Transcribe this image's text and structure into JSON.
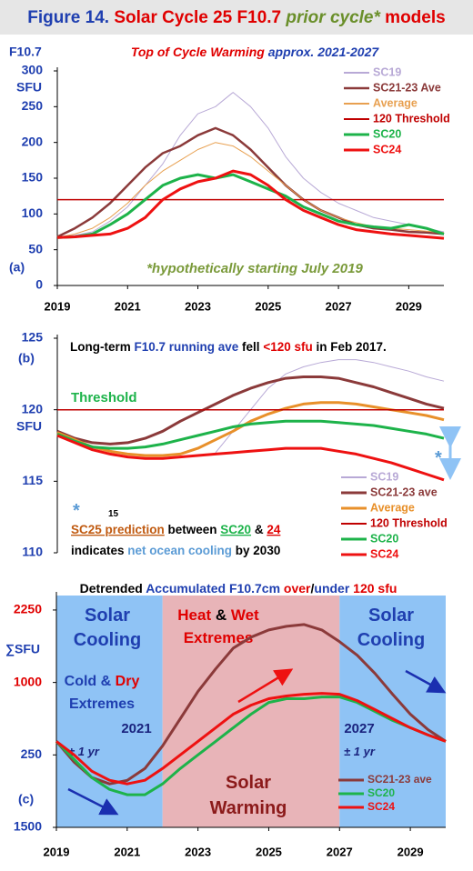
{
  "title": [
    {
      "text": "Figure 14. ",
      "color": "#1f3fb0"
    },
    {
      "text": "Solar Cycle 25 F10.7 ",
      "color": "#e00000"
    },
    {
      "text": "prior cycle*",
      "color": "#6a8f2a",
      "italic": true
    },
    {
      "text": " models",
      "color": "#e00000"
    }
  ],
  "chart_data": [
    {
      "type": "line",
      "subtitle": [
        {
          "text": "Top of Cycle Warming ",
          "color": "#e00000",
          "italic": true
        },
        {
          "text": "approx. 2021-2027",
          "color": "#1f3fb0",
          "italic": true
        }
      ],
      "ylabel": [
        "F10.7",
        "SFU"
      ],
      "panel_label": "(a)",
      "annotations": [
        [
          {
            "text": "*hypothetically  starting July 2019",
            "color": "#7a9a3a",
            "italic": true
          }
        ]
      ],
      "x": [
        2019,
        2019.5,
        2020,
        2020.5,
        2021,
        2021.5,
        2022,
        2022.5,
        2023,
        2023.5,
        2024,
        2024.5,
        2025,
        2025.5,
        2026,
        2026.5,
        2027,
        2027.5,
        2028,
        2028.5,
        2029,
        2029.5,
        2030
      ],
      "xlim": [
        2019,
        2030
      ],
      "xticks": [
        2019,
        2021,
        2023,
        2025,
        2027,
        2029
      ],
      "ylim": [
        0,
        300
      ],
      "yticks": [
        0,
        50,
        100,
        150,
        200,
        250,
        300
      ],
      "legend": "upper right",
      "series": [
        {
          "name": "SC19",
          "color": "#b8a9d6",
          "width": 1,
          "values": [
            68,
            70,
            75,
            90,
            110,
            140,
            170,
            210,
            240,
            250,
            270,
            250,
            220,
            180,
            150,
            130,
            115,
            105,
            95,
            90,
            85,
            80,
            75
          ]
        },
        {
          "name": "SC21-23 Ave",
          "color": "#8b3a3a",
          "width": 2.5,
          "values": [
            68,
            80,
            95,
            115,
            140,
            165,
            185,
            195,
            210,
            220,
            210,
            190,
            165,
            140,
            120,
            105,
            95,
            85,
            80,
            78,
            75,
            74,
            72
          ]
        },
        {
          "name": "Average",
          "color": "#e8a050",
          "width": 1,
          "values": [
            67,
            72,
            80,
            95,
            115,
            140,
            160,
            175,
            190,
            200,
            195,
            180,
            160,
            140,
            120,
            105,
            95,
            88,
            82,
            80,
            78,
            76,
            74
          ]
        },
        {
          "name": "120 Threshold",
          "color": "#c00000",
          "width": 1.5,
          "values": [
            120,
            120,
            120,
            120,
            120,
            120,
            120,
            120,
            120,
            120,
            120,
            120,
            120,
            120,
            120,
            120,
            120,
            120,
            120,
            120,
            120,
            120,
            120
          ]
        },
        {
          "name": "SC20",
          "color": "#1db34a",
          "width": 3,
          "values": [
            67,
            68,
            72,
            85,
            100,
            120,
            140,
            150,
            155,
            150,
            155,
            145,
            135,
            125,
            110,
            100,
            90,
            85,
            82,
            80,
            85,
            80,
            72
          ]
        },
        {
          "name": "SC24",
          "color": "#ee1111",
          "width": 3,
          "values": [
            67,
            68,
            70,
            72,
            80,
            95,
            120,
            135,
            145,
            150,
            160,
            155,
            140,
            120,
            105,
            95,
            85,
            78,
            75,
            72,
            70,
            68,
            66
          ]
        }
      ]
    },
    {
      "type": "line",
      "ylabel": [
        "SFU"
      ],
      "panel_label": "(b)",
      "annotations": [
        [
          {
            "text": "Long-term ",
            "color": "#000000"
          },
          {
            "text": "F10.7 running ave",
            "color": "#1f3fb0"
          },
          {
            "text": " fell ",
            "color": "#000000"
          },
          {
            "text": "<120 sfu",
            "color": "#e00000"
          },
          {
            "text": " in Feb 2017.",
            "color": "#000000"
          }
        ],
        [
          {
            "text": "Threshold",
            "color": "#1db34a"
          }
        ],
        [
          {
            "text": "*",
            "color": "#5b9bd5"
          }
        ],
        [
          {
            "text": "15",
            "color": "#000000"
          }
        ],
        [
          {
            "text": "SC25 prediction",
            "color": "#c05a10",
            "underline": true
          },
          {
            "text": " between ",
            "color": "#000000"
          },
          {
            "text": "SC20",
            "color": "#1db34a",
            "underline": true
          },
          {
            "text": " & ",
            "color": "#000000"
          },
          {
            "text": "24",
            "color": "#e00000",
            "underline": true
          }
        ],
        [
          {
            "text": "indicates ",
            "color": "#000000"
          },
          {
            "text": "net ocean cooling",
            "color": "#5b9bd5"
          },
          {
            "text": " by 2030",
            "color": "#000000"
          }
        ],
        [
          {
            "text": "*",
            "color": "#5b9bd5"
          }
        ]
      ],
      "x": [
        2019,
        2019.5,
        2020,
        2020.5,
        2021,
        2021.5,
        2022,
        2022.5,
        2023,
        2023.5,
        2024,
        2024.5,
        2025,
        2025.5,
        2026,
        2026.5,
        2027,
        2027.5,
        2028,
        2028.5,
        2029,
        2029.5,
        2030
      ],
      "xlim": [
        2019,
        2030
      ],
      "ylim": [
        110,
        125
      ],
      "yticks": [
        110,
        115,
        120,
        125
      ],
      "legend": "lower right",
      "series": [
        {
          "name": "SC19",
          "color": "#b8a9d6",
          "width": 1,
          "values": [
            null,
            null,
            null,
            null,
            null,
            null,
            null,
            null,
            null,
            117,
            118.5,
            120,
            121.5,
            122.5,
            123,
            123.3,
            123.5,
            123.5,
            123.3,
            123,
            122.7,
            122.3,
            122
          ]
        },
        {
          "name": "SC21-23 ave",
          "color": "#8b3a3a",
          "width": 3,
          "values": [
            118.5,
            118,
            117.7,
            117.6,
            117.7,
            118,
            118.5,
            119.2,
            119.8,
            120.4,
            121,
            121.5,
            121.9,
            122.2,
            122.3,
            122.3,
            122.2,
            121.9,
            121.6,
            121.2,
            120.8,
            120.4,
            120.1
          ]
        },
        {
          "name": "Average",
          "color": "#e8902a",
          "width": 3,
          "values": [
            118.4,
            117.9,
            117.4,
            117.1,
            116.9,
            116.8,
            116.8,
            116.9,
            117.3,
            117.9,
            118.5,
            119.2,
            119.7,
            120.1,
            120.4,
            120.5,
            120.5,
            120.4,
            120.2,
            120,
            119.8,
            119.6,
            119.3
          ]
        },
        {
          "name": "120 Threshold",
          "color": "#c00000",
          "width": 1.5,
          "values": [
            120,
            120,
            120,
            120,
            120,
            120,
            120,
            120,
            120,
            120,
            120,
            120,
            120,
            120,
            120,
            120,
            120,
            120,
            120,
            120,
            120,
            120,
            120
          ]
        },
        {
          "name": "SC20",
          "color": "#1db34a",
          "width": 3,
          "values": [
            118.3,
            117.8,
            117.4,
            117.3,
            117.3,
            117.4,
            117.6,
            117.9,
            118.2,
            118.5,
            118.8,
            119,
            119.1,
            119.2,
            119.2,
            119.2,
            119.1,
            119,
            118.9,
            118.7,
            118.5,
            118.3,
            118
          ]
        },
        {
          "name": "SC24",
          "color": "#ee1111",
          "width": 3,
          "values": [
            118.2,
            117.7,
            117.2,
            116.9,
            116.7,
            116.6,
            116.6,
            116.7,
            116.8,
            116.9,
            117,
            117.1,
            117.2,
            117.3,
            117.3,
            117.3,
            117.1,
            116.9,
            116.6,
            116.3,
            115.9,
            115.5,
            115.1
          ]
        }
      ]
    },
    {
      "type": "line",
      "subtitle": [
        {
          "text": "Detrended ",
          "color": "#000000"
        },
        {
          "text": "Accumulated F10.7cm ",
          "color": "#1f3fb0"
        },
        {
          "text": "over",
          "color": "#e00000"
        },
        {
          "text": "/",
          "color": "#000000"
        },
        {
          "text": "under",
          "color": "#1f3fb0"
        },
        {
          "text": " 120 sfu",
          "color": "#e00000"
        }
      ],
      "ylabel": [
        "∑SFU"
      ],
      "panel_label": "(c)",
      "regions": [
        {
          "from": 2019,
          "to": 2022,
          "color": "#8fc3f5"
        },
        {
          "from": 2022,
          "to": 2027,
          "color": "#e8b4b8"
        },
        {
          "from": 2027,
          "to": 2030,
          "color": "#8fc3f5"
        }
      ],
      "annotations": [
        [
          {
            "text": "Solar",
            "color": "#1f3fb0"
          }
        ],
        [
          {
            "text": "Cooling",
            "color": "#1f3fb0"
          }
        ],
        [
          {
            "text": "Cold ",
            "color": "#1f3fb0"
          },
          {
            "text": "& ",
            "color": "#1f3fb0"
          },
          {
            "text": "Dry",
            "color": "#e00000"
          }
        ],
        [
          {
            "text": "Extremes",
            "color": "#1f3fb0"
          }
        ],
        [
          {
            "text": "Heat ",
            "color": "#e00000"
          },
          {
            "text": "& ",
            "color": "#000000"
          },
          {
            "text": "Wet",
            "color": "#e00000"
          }
        ],
        [
          {
            "text": "Extremes",
            "color": "#e00000"
          }
        ],
        [
          {
            "text": "Solar",
            "color": "#1f3fb0"
          }
        ],
        [
          {
            "text": "Cooling",
            "color": "#1f3fb0"
          }
        ],
        [
          {
            "text": "2021",
            "color": "#1a237e"
          }
        ],
        [
          {
            "text": "± 1 yr",
            "color": "#1a237e",
            "italic": true
          }
        ],
        [
          {
            "text": "2027",
            "color": "#1a237e"
          }
        ],
        [
          {
            "text": "± 1 yr",
            "color": "#1a237e",
            "italic": true
          }
        ],
        [
          {
            "text": "Solar",
            "color": "#8b1a1a"
          }
        ],
        [
          {
            "text": "Warming",
            "color": "#8b1a1a"
          }
        ]
      ],
      "x": [
        2019,
        2019.5,
        2020,
        2020.5,
        2021,
        2021.5,
        2022,
        2022.5,
        2023,
        2023.5,
        2024,
        2024.5,
        2025,
        2025.5,
        2026,
        2026.5,
        2027,
        2027.5,
        2028,
        2028.5,
        2029,
        2029.5,
        2030
      ],
      "xlim": [
        2019,
        2030
      ],
      "xticks": [
        2019,
        2021,
        2023,
        2025,
        2027,
        2029
      ],
      "ylim": [
        -1500,
        2500
      ],
      "yticks": [
        {
          "value": -1500,
          "label": "1500"
        },
        {
          "value": -250,
          "label": "250"
        },
        1000,
        2250
      ],
      "ytick_colors": [
        "#1f3fb0",
        "#1f3fb0",
        "#e00000",
        "#e00000"
      ],
      "legend": "lower right",
      "series": [
        {
          "name": "SC21-23 ave",
          "color": "#8b3a3a",
          "width": 3,
          "values": [
            -16,
            -375,
            -640,
            -750,
            -690,
            -485,
            -94,
            375,
            844,
            1234,
            1594,
            1781,
            1906,
            1969,
            2000,
            1906,
            1703,
            1469,
            1156,
            797,
            453,
            187,
            -16
          ]
        },
        {
          "name": "SC20",
          "color": "#1db34a",
          "width": 3,
          "values": [
            -16,
            -328,
            -640,
            -844,
            -937,
            -937,
            -750,
            -485,
            -250,
            -16,
            219,
            453,
            656,
            719,
            719,
            750,
            750,
            656,
            500,
            344,
            219,
            94,
            -16
          ]
        },
        {
          "name": "SC24",
          "color": "#ee1111",
          "width": 3,
          "values": [
            -16,
            -250,
            -531,
            -687,
            -750,
            -687,
            -485,
            -250,
            -16,
            219,
            453,
            609,
            719,
            766,
            797,
            812,
            797,
            687,
            531,
            375,
            219,
            94,
            -16
          ]
        }
      ]
    }
  ]
}
